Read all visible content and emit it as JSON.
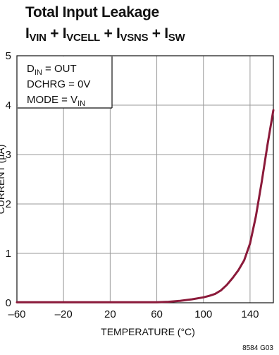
{
  "chart_data": {
    "type": "line",
    "title": "Total Input Leakage",
    "subtitle": {
      "terms": [
        {
          "main": "I",
          "sub": "VIN"
        },
        {
          "main": "I",
          "sub": "VCELL"
        },
        {
          "main": "I",
          "sub": "VSNS"
        },
        {
          "main": "I",
          "sub": "SW"
        }
      ],
      "separator": "+"
    },
    "xlabel": "TEMPERATURE (°C)",
    "ylabel": "CURRENT (µA)",
    "xlim": [
      -60,
      160
    ],
    "ylim": [
      0,
      5
    ],
    "xticks": [
      -60,
      -20,
      20,
      60,
      100,
      140
    ],
    "xtick_labels": [
      "–60",
      "–20",
      "20",
      "60",
      "100",
      "140"
    ],
    "yticks": [
      0,
      1,
      2,
      3,
      4,
      5
    ],
    "grid": true,
    "conditions": [
      {
        "main": "D",
        "sub": "IN",
        "rest": " = OUT"
      },
      {
        "main": "DCHRG = 0V",
        "sub": "",
        "rest": ""
      },
      {
        "main": "MODE = V",
        "sub": "IN",
        "rest": ""
      }
    ],
    "series": [
      {
        "color": "#8b1a3a",
        "x": [
          -60,
          -40,
          -20,
          0,
          20,
          40,
          60,
          70,
          80,
          90,
          100,
          105,
          110,
          115,
          120,
          125,
          130,
          135,
          140,
          145,
          150,
          155,
          160
        ],
        "y": [
          0.01,
          0.01,
          0.01,
          0.01,
          0.01,
          0.01,
          0.01,
          0.02,
          0.04,
          0.07,
          0.11,
          0.14,
          0.18,
          0.25,
          0.36,
          0.5,
          0.66,
          0.86,
          1.2,
          1.75,
          2.45,
          3.2,
          3.9
        ]
      }
    ],
    "figure_id": "8584 G03"
  }
}
